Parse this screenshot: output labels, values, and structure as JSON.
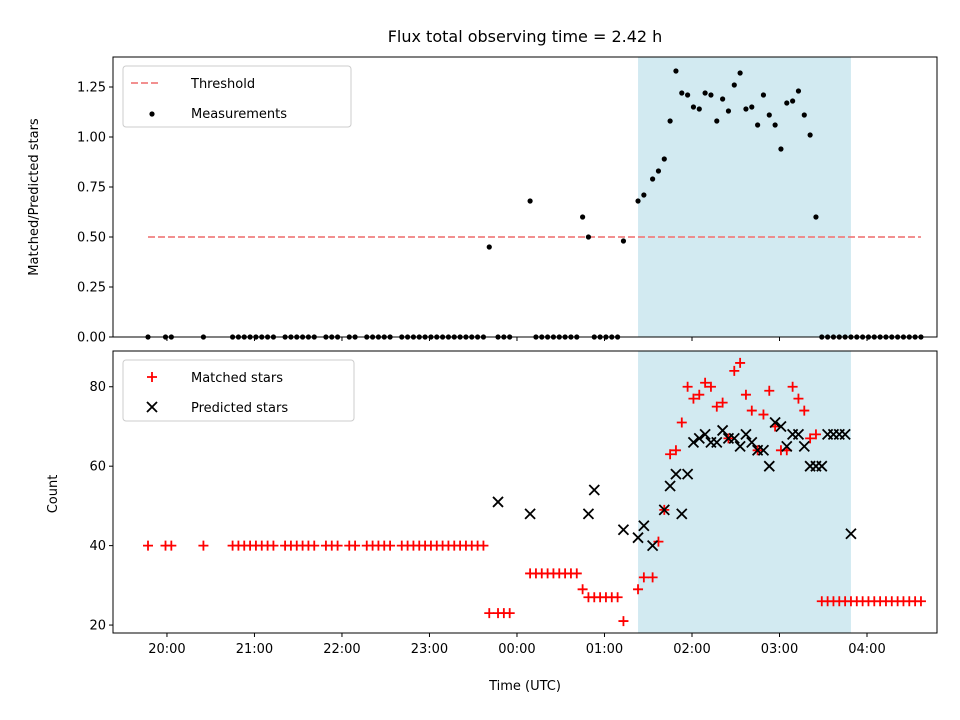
{
  "chart_data": [
    {
      "type": "scatter",
      "title": "Flux total observing time = 2.42 h",
      "xlabel": "",
      "ylabel": "Matched/Predicted stars",
      "ylim": [
        0,
        1.4
      ],
      "xlim": [
        "19:23",
        "04:48"
      ],
      "yticks": [
        "0.00",
        "0.25",
        "0.50",
        "0.75",
        "1.00",
        "1.25"
      ],
      "ytick_values": [
        0,
        0.25,
        0.5,
        0.75,
        1.0,
        1.25
      ],
      "grid": false,
      "legend_placement": "upper-left",
      "highlight_span": {
        "start": "01:23",
        "end": "03:49",
        "color": "#add8e6"
      },
      "series": [
        {
          "name": "Threshold",
          "style": "dashed-line",
          "color": "#f08080",
          "x": [
            "19:47",
            "04:37"
          ],
          "y": [
            0.5,
            0.5
          ]
        },
        {
          "name": "Measurements",
          "style": "dot",
          "color": "#000000",
          "x": [
            "19:47",
            "19:59",
            "20:03",
            "20:25",
            "20:45",
            "20:49",
            "20:53",
            "20:57",
            "21:01",
            "21:05",
            "21:09",
            "21:13",
            "21:21",
            "21:25",
            "21:29",
            "21:33",
            "21:37",
            "21:41",
            "21:49",
            "21:53",
            "21:57",
            "22:05",
            "22:09",
            "22:17",
            "22:21",
            "22:25",
            "22:29",
            "22:33",
            "22:41",
            "22:45",
            "22:49",
            "22:53",
            "22:57",
            "23:01",
            "23:05",
            "23:09",
            "23:13",
            "23:17",
            "23:21",
            "23:25",
            "23:29",
            "23:33",
            "23:37",
            "23:41",
            "23:47",
            "23:51",
            "23:55",
            "00:09",
            "00:13",
            "00:17",
            "00:21",
            "00:25",
            "00:29",
            "00:33",
            "00:37",
            "00:41",
            "00:45",
            "00:49",
            "00:53",
            "00:57",
            "01:01",
            "01:05",
            "01:09",
            "01:13",
            "01:23",
            "01:27",
            "01:33",
            "01:37",
            "01:41",
            "01:45",
            "01:49",
            "01:53",
            "01:57",
            "02:01",
            "02:05",
            "02:09",
            "02:13",
            "02:17",
            "02:21",
            "02:25",
            "02:29",
            "02:33",
            "02:37",
            "02:41",
            "02:45",
            "02:49",
            "02:53",
            "02:57",
            "03:01",
            "03:05",
            "03:09",
            "03:13",
            "03:17",
            "03:21",
            "03:25",
            "03:29",
            "03:33",
            "03:37",
            "03:41",
            "03:45",
            "03:49",
            "03:53",
            "03:57",
            "04:01",
            "04:05",
            "04:09",
            "04:13",
            "04:17",
            "04:21",
            "04:25",
            "04:29",
            "04:33",
            "04:37"
          ],
          "y": [
            0,
            0,
            0,
            0,
            0,
            0,
            0,
            0,
            0,
            0,
            0,
            0,
            0,
            0,
            0,
            0,
            0,
            0,
            0,
            0,
            0,
            0,
            0,
            0,
            0,
            0,
            0,
            0,
            0,
            0,
            0,
            0,
            0,
            0,
            0,
            0,
            0,
            0,
            0,
            0,
            0,
            0,
            0,
            0.45,
            0,
            0,
            0,
            0.68,
            0,
            0,
            0,
            0,
            0,
            0,
            0,
            0,
            0.6,
            0.5,
            0,
            0,
            0,
            0,
            0,
            0.48,
            0.68,
            0.71,
            0.79,
            0.83,
            0.89,
            1.08,
            1.33,
            1.22,
            1.21,
            1.15,
            1.14,
            1.22,
            1.21,
            1.08,
            1.19,
            1.13,
            1.26,
            1.32,
            1.14,
            1.15,
            1.06,
            1.21,
            1.11,
            1.06,
            0.94,
            1.17,
            1.18,
            1.23,
            1.11,
            1.01,
            0.6,
            0,
            0,
            0,
            0,
            0,
            0,
            0,
            0,
            0,
            0,
            0,
            0,
            0,
            0,
            0,
            0,
            0,
            0
          ]
        }
      ]
    },
    {
      "type": "scatter",
      "title": "",
      "xlabel": "Time (UTC)",
      "ylabel": "Count",
      "ylim": [
        18,
        89
      ],
      "xlim": [
        "19:23",
        "04:48"
      ],
      "yticks": [
        "20",
        "40",
        "60",
        "80"
      ],
      "ytick_values": [
        20,
        40,
        60,
        80
      ],
      "xticks": [
        "20:00",
        "21:00",
        "22:00",
        "23:00",
        "00:00",
        "01:00",
        "02:00",
        "03:00",
        "04:00"
      ],
      "grid": false,
      "legend_placement": "upper-left",
      "highlight_span": {
        "start": "01:23",
        "end": "03:49",
        "color": "#add8e6"
      },
      "series": [
        {
          "name": "Matched stars",
          "style": "plus",
          "color": "#ff0000",
          "x": [
            "19:47",
            "19:59",
            "20:03",
            "20:25",
            "20:45",
            "20:49",
            "20:53",
            "20:57",
            "21:01",
            "21:05",
            "21:09",
            "21:13",
            "21:21",
            "21:25",
            "21:29",
            "21:33",
            "21:37",
            "21:41",
            "21:49",
            "21:53",
            "21:57",
            "22:05",
            "22:09",
            "22:17",
            "22:21",
            "22:25",
            "22:29",
            "22:33",
            "22:41",
            "22:45",
            "22:49",
            "22:53",
            "22:57",
            "23:01",
            "23:05",
            "23:09",
            "23:13",
            "23:17",
            "23:21",
            "23:25",
            "23:29",
            "23:33",
            "23:37",
            "23:41",
            "23:47",
            "23:51",
            "23:55",
            "00:09",
            "00:13",
            "00:17",
            "00:21",
            "00:25",
            "00:29",
            "00:33",
            "00:37",
            "00:41",
            "00:45",
            "00:49",
            "00:53",
            "00:57",
            "01:01",
            "01:05",
            "01:09",
            "01:13",
            "01:23",
            "01:27",
            "01:33",
            "01:37",
            "01:41",
            "01:45",
            "01:49",
            "01:53",
            "01:57",
            "02:01",
            "02:05",
            "02:09",
            "02:13",
            "02:17",
            "02:21",
            "02:25",
            "02:29",
            "02:33",
            "02:37",
            "02:41",
            "02:45",
            "02:49",
            "02:53",
            "02:57",
            "03:01",
            "03:05",
            "03:09",
            "03:13",
            "03:17",
            "03:21",
            "03:25",
            "03:29",
            "03:33",
            "03:37",
            "03:41",
            "03:45",
            "03:49",
            "03:53",
            "03:57",
            "04:01",
            "04:05",
            "04:09",
            "04:13",
            "04:17",
            "04:21",
            "04:25",
            "04:29",
            "04:33",
            "04:37"
          ],
          "y": [
            40,
            40,
            40,
            40,
            40,
            40,
            40,
            40,
            40,
            40,
            40,
            40,
            40,
            40,
            40,
            40,
            40,
            40,
            40,
            40,
            40,
            40,
            40,
            40,
            40,
            40,
            40,
            40,
            40,
            40,
            40,
            40,
            40,
            40,
            40,
            40,
            40,
            40,
            40,
            40,
            40,
            40,
            40,
            23,
            23,
            23,
            23,
            33,
            33,
            33,
            33,
            33,
            33,
            33,
            33,
            33,
            29,
            27,
            27,
            27,
            27,
            27,
            27,
            21,
            29,
            32,
            32,
            41,
            49,
            63,
            64,
            71,
            80,
            77,
            78,
            81,
            80,
            75,
            76,
            67,
            84,
            86,
            78,
            74,
            64,
            73,
            79,
            70,
            64,
            64,
            80,
            77,
            74,
            67,
            68,
            26,
            26,
            26,
            26,
            26,
            26,
            26,
            26,
            26,
            26,
            26,
            26,
            26,
            26,
            26,
            26,
            26,
            26
          ]
        },
        {
          "name": "Predicted stars",
          "style": "x",
          "color": "#000000",
          "x": [
            "23:47",
            "00:09",
            "00:49",
            "00:53",
            "01:13",
            "01:23",
            "01:27",
            "01:33",
            "01:41",
            "01:45",
            "01:49",
            "01:53",
            "01:57",
            "02:01",
            "02:05",
            "02:09",
            "02:13",
            "02:17",
            "02:21",
            "02:25",
            "02:29",
            "02:33",
            "02:37",
            "02:41",
            "02:45",
            "02:49",
            "02:53",
            "02:57",
            "03:01",
            "03:05",
            "03:09",
            "03:13",
            "03:17",
            "03:21",
            "03:25",
            "03:29",
            "03:33",
            "03:37",
            "03:41",
            "03:45",
            "03:49"
          ],
          "y": [
            51,
            48,
            48,
            54,
            44,
            42,
            45,
            40,
            49,
            55,
            58,
            48,
            58,
            66,
            67,
            68,
            66,
            66,
            69,
            67,
            67,
            65,
            68,
            66,
            64,
            64,
            60,
            71,
            70,
            65,
            68,
            68,
            65,
            60,
            60,
            60,
            68,
            68,
            68,
            68,
            43
          ]
        }
      ]
    }
  ]
}
